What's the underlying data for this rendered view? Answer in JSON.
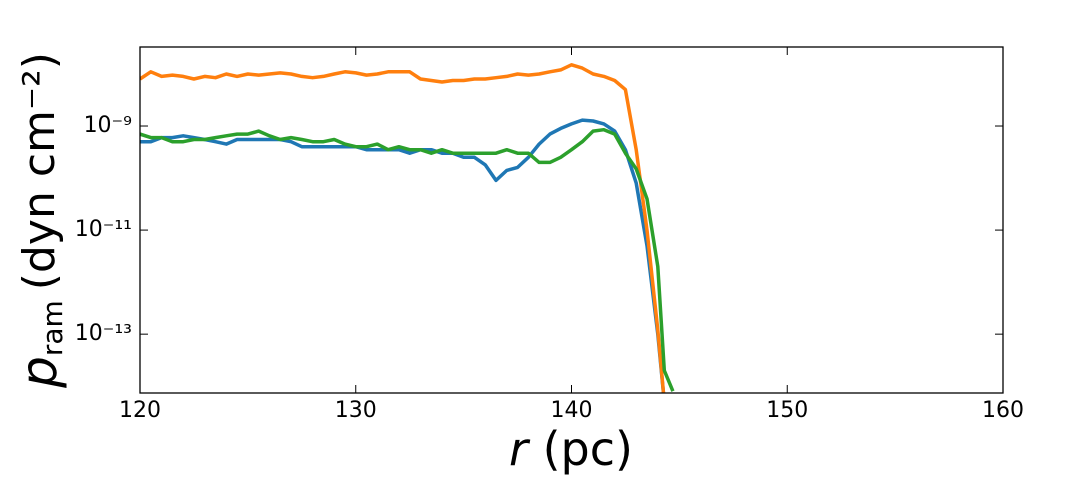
{
  "chart_data": {
    "type": "line",
    "xlabel": {
      "symbol": "r",
      "unit": "(pc)"
    },
    "ylabel": {
      "symbol": "p",
      "subscript": "ram",
      "unit": "(dyn cm⁻²)"
    },
    "x": [
      120,
      120.5,
      121,
      121.5,
      122,
      122.5,
      123,
      123.5,
      124,
      124.5,
      125,
      125.5,
      126,
      126.5,
      127,
      127.5,
      128,
      128.5,
      129,
      129.5,
      130,
      130.5,
      131,
      131.5,
      132,
      132.5,
      133,
      133.5,
      134,
      134.5,
      135,
      135.5,
      136,
      136.5,
      137,
      137.5,
      138,
      138.5,
      139,
      139.5,
      140,
      140.5,
      141,
      141.5,
      142,
      142.5,
      143,
      143.5,
      144,
      144.3,
      144.7
    ],
    "series": [
      {
        "color": "#1f77b4",
        "values": [
          5e-10,
          5e-10,
          6e-10,
          6e-10,
          6.5e-10,
          6e-10,
          5.5e-10,
          5e-10,
          4.5e-10,
          5.5e-10,
          5.5e-10,
          5.5e-10,
          5.5e-10,
          5.5e-10,
          5e-10,
          4e-10,
          4e-10,
          4e-10,
          4e-10,
          4e-10,
          4e-10,
          3.5e-10,
          3.5e-10,
          3.5e-10,
          3.5e-10,
          3e-10,
          3.5e-10,
          3.5e-10,
          3e-10,
          3e-10,
          2.5e-10,
          2.5e-10,
          1.8e-10,
          9e-11,
          1.4e-10,
          1.6e-10,
          2.5e-10,
          4.5e-10,
          7e-10,
          9e-10,
          1.1e-09,
          1.3e-09,
          1.25e-09,
          1.1e-09,
          8e-10,
          3.5e-10,
          8e-11,
          5e-12,
          1e-13,
          5e-15,
          null
        ]
      },
      {
        "color": "#ff7f0e",
        "values": [
          8e-09,
          1.1e-08,
          9e-09,
          9.5e-09,
          9e-09,
          8e-09,
          9e-09,
          8.5e-09,
          1e-08,
          9e-09,
          1e-08,
          9.5e-09,
          1e-08,
          1.05e-08,
          1e-08,
          9e-09,
          8.5e-09,
          9e-09,
          1e-08,
          1.1e-08,
          1.05e-08,
          9.5e-09,
          1e-08,
          1.1e-08,
          1.1e-08,
          1.1e-08,
          8e-09,
          7.5e-09,
          7e-09,
          7.5e-09,
          7.5e-09,
          8e-09,
          8e-09,
          8.5e-09,
          9e-09,
          1e-08,
          9.5e-09,
          1e-08,
          1.1e-08,
          1.2e-08,
          1.5e-08,
          1.3e-08,
          1e-08,
          9e-09,
          7.5e-09,
          5e-09,
          3.5e-10,
          1e-11,
          1.2e-13,
          5e-15,
          null
        ]
      },
      {
        "color": "#2ca02c",
        "values": [
          7e-10,
          6e-10,
          6e-10,
          5e-10,
          5e-10,
          5.5e-10,
          5.5e-10,
          6e-10,
          6.5e-10,
          7e-10,
          7e-10,
          8e-10,
          6.5e-10,
          5.5e-10,
          6e-10,
          5.5e-10,
          5e-10,
          5e-10,
          5.5e-10,
          4.5e-10,
          4e-10,
          4e-10,
          4.5e-10,
          3.5e-10,
          4e-10,
          3.5e-10,
          3.5e-10,
          3e-10,
          3.5e-10,
          3e-10,
          3e-10,
          3e-10,
          3e-10,
          3e-10,
          3.5e-10,
          3e-10,
          3e-10,
          2e-10,
          2e-10,
          2.5e-10,
          3.5e-10,
          5e-10,
          8e-10,
          8.5e-10,
          7e-10,
          3e-10,
          1.5e-10,
          4e-11,
          2e-12,
          2e-14,
          8e-15
        ]
      }
    ],
    "xlim": [
      120,
      160
    ],
    "xticks": [
      120,
      130,
      140,
      150,
      160
    ],
    "ylim": [
      7.4e-15,
      3.3e-08
    ],
    "ylog": true,
    "yticks": [
      {
        "value": 1e-09,
        "label": "10⁻⁹"
      },
      {
        "value": 1e-11,
        "label": "10⁻¹¹"
      },
      {
        "value": 1e-13,
        "label": "10⁻¹³"
      }
    ]
  }
}
